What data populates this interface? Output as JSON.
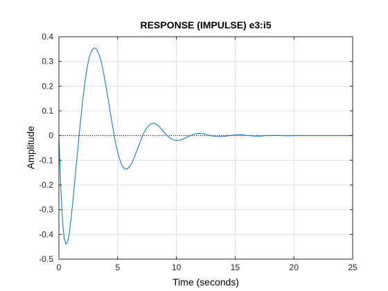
{
  "chart_data": {
    "type": "line",
    "title": "RESPONSE (IMPULSE) e3:i5",
    "xlabel": "Time (seconds)",
    "ylabel": "Amplitude",
    "xlim": [
      0,
      25
    ],
    "ylim": [
      -0.5,
      0.4
    ],
    "xticks": [
      0,
      5,
      10,
      15,
      20,
      25
    ],
    "yticks": [
      -0.5,
      -0.4,
      -0.3,
      -0.2,
      -0.1,
      0,
      0.1,
      0.2,
      0.3,
      0.4
    ],
    "xtick_labels": [
      "0",
      "5",
      "10",
      "15",
      "20",
      "25"
    ],
    "ytick_labels": [
      "-0.5",
      "-0.4",
      "-0.3",
      "-0.2",
      "-0.1",
      "0",
      "0.1",
      "0.2",
      "0.3",
      "0.4"
    ],
    "grid": true,
    "reference_line": {
      "y": 0,
      "style": "dotted"
    },
    "series": [
      {
        "color": "#0072BD",
        "x": [
          0,
          0.15,
          0.3,
          0.45,
          0.6,
          0.75,
          0.9,
          1.05,
          1.2,
          1.4,
          1.6,
          1.8,
          2.0,
          2.2,
          2.4,
          2.6,
          2.8,
          3.0,
          3.2,
          3.4,
          3.6,
          3.8,
          4.0,
          4.2,
          4.4,
          4.6,
          4.8,
          5.0,
          5.2,
          5.4,
          5.6,
          5.8,
          6.0,
          6.2,
          6.4,
          6.6,
          6.8,
          7.0,
          7.2,
          7.4,
          7.6,
          7.8,
          8.0,
          8.2,
          8.4,
          8.6,
          8.8,
          9.0,
          9.2,
          9.4,
          9.6,
          9.8,
          10.0,
          10.2,
          10.4,
          10.6,
          10.8,
          11.0,
          11.2,
          11.4,
          11.6,
          11.8,
          12.0,
          12.2,
          12.4,
          12.6,
          12.8,
          13.0,
          13.2,
          13.4,
          13.6,
          13.8,
          14.0,
          14.2,
          14.4,
          14.6,
          14.8,
          15.0,
          15.2,
          15.4,
          15.6,
          15.8,
          16.0,
          16.2,
          16.4,
          16.6,
          16.8,
          17.0,
          17.2,
          17.4,
          17.6,
          17.8,
          18.0,
          18.5,
          19.0,
          19.5,
          20.0,
          20.5,
          21.0,
          21.5,
          22.0,
          22.5,
          23.0,
          23.5,
          24.0,
          24.5,
          25.0
        ],
        "y": [
          0,
          -0.2,
          -0.34,
          -0.415,
          -0.44,
          -0.43,
          -0.39,
          -0.33,
          -0.26,
          -0.16,
          -0.06,
          0.04,
          0.13,
          0.21,
          0.275,
          0.32,
          0.345,
          0.355,
          0.35,
          0.33,
          0.3,
          0.255,
          0.2,
          0.145,
          0.085,
          0.03,
          -0.025,
          -0.068,
          -0.1,
          -0.123,
          -0.135,
          -0.135,
          -0.128,
          -0.112,
          -0.09,
          -0.065,
          -0.04,
          -0.015,
          0.008,
          0.025,
          0.038,
          0.046,
          0.05,
          0.048,
          0.042,
          0.033,
          0.022,
          0.011,
          0.001,
          -0.008,
          -0.014,
          -0.018,
          -0.02,
          -0.019,
          -0.017,
          -0.013,
          -0.009,
          -0.004,
          0.0,
          0.004,
          0.007,
          0.009,
          0.009,
          0.008,
          0.006,
          0.004,
          0.001,
          -0.001,
          -0.003,
          -0.004,
          -0.004,
          -0.004,
          -0.003,
          -0.002,
          -0.001,
          0.0,
          0.002,
          0.003,
          0.003,
          0.003,
          0.003,
          0.002,
          0.001,
          0.0,
          -0.001,
          -0.002,
          -0.002,
          -0.002,
          -0.002,
          -0.001,
          0.0,
          0.0,
          0.001,
          0.001,
          0.0,
          -0.001,
          0.0,
          0.0,
          0.0,
          0.0,
          0.0,
          0.0,
          0.0,
          0.0,
          0.0,
          0.0,
          0.0
        ]
      }
    ]
  }
}
